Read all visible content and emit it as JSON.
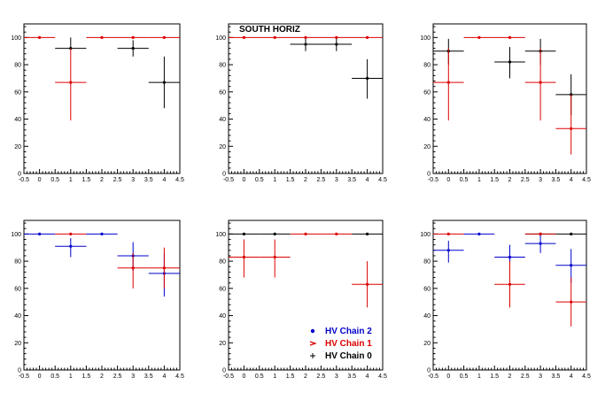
{
  "colors": {
    "chain2": "#0000cc",
    "chain1": "#dd0000",
    "chain0": "#000000"
  },
  "legend": {
    "entries": [
      {
        "label": "HV Chain 2",
        "color": "#0000cc",
        "marker": "dot"
      },
      {
        "label": "HV Chain 1",
        "color": "#dd0000",
        "marker": "arrow"
      },
      {
        "label": "HV Chain 0",
        "color": "#000000",
        "marker": "cross"
      }
    ]
  },
  "chart_data": [
    {
      "type": "scatter",
      "title": "",
      "xlim": [
        -0.5,
        4.5
      ],
      "ylim": [
        0,
        110
      ],
      "xticks": [
        "-0.5",
        "0",
        "0.5",
        "1",
        "1.5",
        "2",
        "2.5",
        "3",
        "3.5",
        "4",
        "4.5"
      ],
      "yticks": [
        "0",
        "20",
        "40",
        "60",
        "80",
        "100"
      ],
      "series": [
        {
          "color": "#000000",
          "points": [
            {
              "x": 1,
              "y": 92,
              "xerr": 0.5,
              "ylo": 92,
              "yhi": 100
            },
            {
              "x": 3,
              "y": 92,
              "xerr": 0.5,
              "ylo": 86,
              "yhi": 98
            },
            {
              "x": 4,
              "y": 67,
              "xerr": 0.5,
              "ylo": 48,
              "yhi": 86
            }
          ]
        },
        {
          "color": "#dd0000",
          "points": [
            {
              "x": 0,
              "y": 100,
              "xerr": 0.5,
              "ylo": 100,
              "yhi": 100
            },
            {
              "x": 1,
              "y": 67,
              "xerr": 0.5,
              "ylo": 39,
              "yhi": 92
            },
            {
              "x": 2,
              "y": 100,
              "xerr": 0.5,
              "ylo": 100,
              "yhi": 100
            },
            {
              "x": 3,
              "y": 100,
              "xerr": 0.5,
              "ylo": 100,
              "yhi": 100
            },
            {
              "x": 4,
              "y": 100,
              "xerr": 0.5,
              "ylo": 100,
              "yhi": 100
            }
          ]
        }
      ]
    },
    {
      "type": "scatter",
      "title": "SOUTH HORIZ",
      "xlim": [
        -0.5,
        4.5
      ],
      "ylim": [
        0,
        110
      ],
      "xticks": [
        "-0.5",
        "0",
        "0.5",
        "1",
        "1.5",
        "2",
        "2.5",
        "3",
        "3.5",
        "4",
        "4.5"
      ],
      "yticks": [
        "0",
        "20",
        "40",
        "60",
        "80",
        "100"
      ],
      "series": [
        {
          "color": "#000000",
          "points": [
            {
              "x": 2,
              "y": 95,
              "xerr": 0.5,
              "ylo": 90,
              "yhi": 99
            },
            {
              "x": 3,
              "y": 95,
              "xerr": 0.5,
              "ylo": 90,
              "yhi": 99
            },
            {
              "x": 4,
              "y": 70,
              "xerr": 0.5,
              "ylo": 55,
              "yhi": 84
            }
          ]
        },
        {
          "color": "#dd0000",
          "points": [
            {
              "x": 0,
              "y": 100,
              "xerr": 0.5,
              "ylo": 100,
              "yhi": 100
            },
            {
              "x": 1,
              "y": 100,
              "xerr": 0.5,
              "ylo": 100,
              "yhi": 100
            },
            {
              "x": 2,
              "y": 100,
              "xerr": 0.5,
              "ylo": 100,
              "yhi": 100
            },
            {
              "x": 3,
              "y": 100,
              "xerr": 0.5,
              "ylo": 100,
              "yhi": 100
            },
            {
              "x": 4,
              "y": 100,
              "xerr": 0.5,
              "ylo": 100,
              "yhi": 100
            }
          ]
        }
      ]
    },
    {
      "type": "scatter",
      "title": "",
      "xlim": [
        -0.5,
        4.5
      ],
      "ylim": [
        0,
        110
      ],
      "xticks": [
        "-0.5",
        "0",
        "0.5",
        "1",
        "1.5",
        "2",
        "2.5",
        "3",
        "3.5",
        "4",
        "4.5"
      ],
      "yticks": [
        "0",
        "20",
        "40",
        "60",
        "80",
        "100"
      ],
      "series": [
        {
          "color": "#000000",
          "points": [
            {
              "x": 0,
              "y": 90,
              "xerr": 0.5,
              "ylo": 80,
              "yhi": 99
            },
            {
              "x": 2,
              "y": 82,
              "xerr": 0.5,
              "ylo": 70,
              "yhi": 93
            },
            {
              "x": 3,
              "y": 90,
              "xerr": 0.5,
              "ylo": 80,
              "yhi": 99
            },
            {
              "x": 4,
              "y": 58,
              "xerr": 0.5,
              "ylo": 43,
              "yhi": 73
            }
          ]
        },
        {
          "color": "#dd0000",
          "points": [
            {
              "x": 0,
              "y": 67,
              "xerr": 0.5,
              "ylo": 39,
              "yhi": 92
            },
            {
              "x": 1,
              "y": 100,
              "xerr": 0.5,
              "ylo": 100,
              "yhi": 100
            },
            {
              "x": 2,
              "y": 100,
              "xerr": 0.5,
              "ylo": 100,
              "yhi": 100
            },
            {
              "x": 3,
              "y": 67,
              "xerr": 0.5,
              "ylo": 39,
              "yhi": 92
            },
            {
              "x": 4,
              "y": 33,
              "xerr": 0.5,
              "ylo": 14,
              "yhi": 58
            }
          ]
        }
      ]
    },
    {
      "type": "scatter",
      "title": "",
      "xlim": [
        -0.5,
        4.5
      ],
      "ylim": [
        0,
        110
      ],
      "xticks": [
        "-0.5",
        "0",
        "0.5",
        "1",
        "1.5",
        "2",
        "2.5",
        "3",
        "3.5",
        "4",
        "4.5"
      ],
      "yticks": [
        "0",
        "20",
        "40",
        "60",
        "80",
        "100"
      ],
      "series": [
        {
          "color": "#0000cc",
          "points": [
            {
              "x": 0,
              "y": 100,
              "xerr": 0.5,
              "ylo": 100,
              "yhi": 100
            },
            {
              "x": 1,
              "y": 91,
              "xerr": 0.5,
              "ylo": 83,
              "yhi": 97
            },
            {
              "x": 2,
              "y": 100,
              "xerr": 0.5,
              "ylo": 100,
              "yhi": 100
            },
            {
              "x": 3,
              "y": 84,
              "xerr": 0.5,
              "ylo": 73,
              "yhi": 94
            },
            {
              "x": 4,
              "y": 71,
              "xerr": 0.5,
              "ylo": 54,
              "yhi": 86
            }
          ]
        },
        {
          "color": "#dd0000",
          "points": [
            {
              "x": 1,
              "y": 100,
              "xerr": 0.5,
              "ylo": 100,
              "yhi": 100
            },
            {
              "x": 3,
              "y": 75,
              "xerr": 0.5,
              "ylo": 60,
              "yhi": 86
            },
            {
              "x": 4,
              "y": 75,
              "xerr": 0.5,
              "ylo": 60,
              "yhi": 90
            }
          ]
        }
      ]
    },
    {
      "type": "scatter",
      "title": "",
      "xlim": [
        -0.5,
        4.5
      ],
      "ylim": [
        0,
        110
      ],
      "xticks": [
        "-0.5",
        "0",
        "0.5",
        "1",
        "1.5",
        "2",
        "2.5",
        "3",
        "3.5",
        "4",
        "4.5"
      ],
      "yticks": [
        "0",
        "20",
        "40",
        "60",
        "80",
        "100"
      ],
      "series": [
        {
          "color": "#000000",
          "points": [
            {
              "x": 0,
              "y": 100,
              "xerr": 0.5,
              "ylo": 100,
              "yhi": 100
            },
            {
              "x": 1,
              "y": 100,
              "xerr": 0.5,
              "ylo": 100,
              "yhi": 100
            },
            {
              "x": 4,
              "y": 100,
              "xerr": 0.5,
              "ylo": 100,
              "yhi": 100
            }
          ]
        },
        {
          "color": "#dd0000",
          "points": [
            {
              "x": 0,
              "y": 83,
              "xerr": 0.5,
              "ylo": 68,
              "yhi": 96
            },
            {
              "x": 1,
              "y": 83,
              "xerr": 0.5,
              "ylo": 68,
              "yhi": 96
            },
            {
              "x": 2,
              "y": 100,
              "xerr": 0.5,
              "ylo": 100,
              "yhi": 100
            },
            {
              "x": 3,
              "y": 100,
              "xerr": 0.5,
              "ylo": 100,
              "yhi": 100
            },
            {
              "x": 4,
              "y": 63,
              "xerr": 0.5,
              "ylo": 46,
              "yhi": 80
            }
          ]
        }
      ]
    },
    {
      "type": "scatter",
      "title": "",
      "xlim": [
        -0.5,
        4.5
      ],
      "ylim": [
        0,
        110
      ],
      "xticks": [
        "-0.5",
        "0",
        "0.5",
        "1",
        "1.5",
        "2",
        "2.5",
        "3",
        "3.5",
        "4",
        "4.5"
      ],
      "yticks": [
        "0",
        "20",
        "40",
        "60",
        "80",
        "100"
      ],
      "series": [
        {
          "color": "#000000",
          "points": [
            {
              "x": 3,
              "y": 100,
              "xerr": 0.5,
              "ylo": 100,
              "yhi": 100
            },
            {
              "x": 4,
              "y": 100,
              "xerr": 0.5,
              "ylo": 100,
              "yhi": 100
            }
          ]
        },
        {
          "color": "#0000cc",
          "points": [
            {
              "x": 0,
              "y": 88,
              "xerr": 0.5,
              "ylo": 79,
              "yhi": 95
            },
            {
              "x": 1,
              "y": 100,
              "xerr": 0.5,
              "ylo": 100,
              "yhi": 100
            },
            {
              "x": 2,
              "y": 83,
              "xerr": 0.5,
              "ylo": 73,
              "yhi": 92
            },
            {
              "x": 3,
              "y": 93,
              "xerr": 0.5,
              "ylo": 86,
              "yhi": 99
            },
            {
              "x": 4,
              "y": 77,
              "xerr": 0.5,
              "ylo": 64,
              "yhi": 89
            }
          ]
        },
        {
          "color": "#dd0000",
          "points": [
            {
              "x": 0,
              "y": 100,
              "xerr": 0.5,
              "ylo": 100,
              "yhi": 100
            },
            {
              "x": 2,
              "y": 63,
              "xerr": 0.5,
              "ylo": 46,
              "yhi": 80
            },
            {
              "x": 3,
              "y": 100,
              "xerr": 0.5,
              "ylo": 100,
              "yhi": 100
            },
            {
              "x": 4,
              "y": 50,
              "xerr": 0.5,
              "ylo": 32,
              "yhi": 68
            }
          ]
        }
      ]
    }
  ]
}
